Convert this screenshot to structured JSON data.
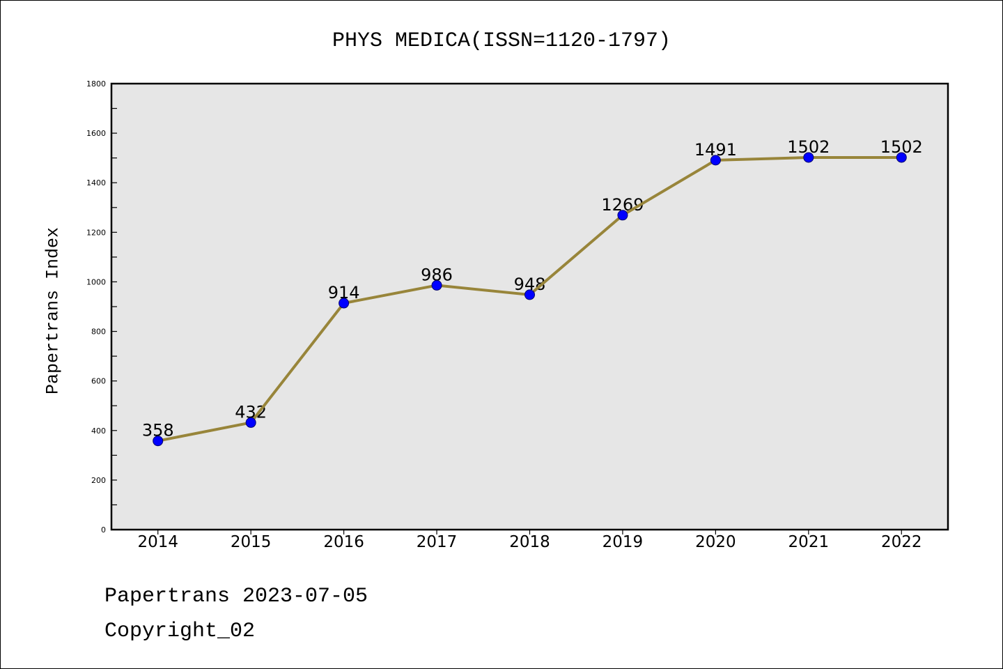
{
  "chart_data": {
    "type": "line",
    "title": "PHYS MEDICA(ISSN=1120-1797)",
    "ylabel": "Papertrans Index",
    "categories": [
      "2014",
      "2015",
      "2016",
      "2017",
      "2018",
      "2019",
      "2020",
      "2021",
      "2022"
    ],
    "values": [
      358,
      432,
      914,
      986,
      948,
      1269,
      1491,
      1502,
      1502
    ],
    "ylim": [
      0,
      1800
    ],
    "yticks": [
      0,
      200,
      400,
      600,
      800,
      1000,
      1200,
      1400,
      1600,
      1800
    ],
    "grid": false
  },
  "footer": {
    "date_line": "Papertrans 2023-07-05",
    "copyright": "Copyright_02"
  },
  "colors": {
    "line": "#98853a",
    "marker": "#0000ff",
    "marker_edge": "#00006e",
    "plot_background": "#e6e6e6"
  }
}
